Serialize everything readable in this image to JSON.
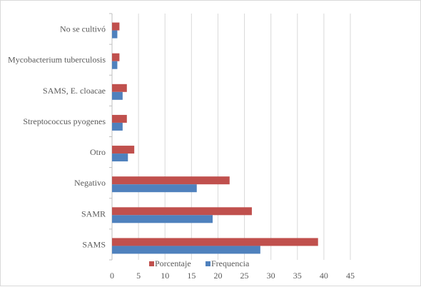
{
  "chart_data": {
    "type": "bar",
    "orientation": "horizontal",
    "categories": [
      "No se cultivó",
      "Mycobacterium tuberculosis",
      "SAMS, E. cloacae",
      "Streptococcus pyogenes",
      "Otro",
      "Negativo",
      "SAMR",
      "SAMS"
    ],
    "series": [
      {
        "name": "Porcentaje",
        "color": "#c0504d",
        "values": [
          1.4,
          1.4,
          2.8,
          2.8,
          4.2,
          22.2,
          26.4,
          38.9
        ]
      },
      {
        "name": "Frequencia",
        "color": "#4f81bd",
        "values": [
          1,
          1,
          2,
          2,
          3,
          16,
          19,
          28
        ]
      }
    ],
    "xlim": [
      0,
      45
    ],
    "x_ticks": [
      0,
      5,
      10,
      15,
      20,
      25,
      30,
      35,
      40,
      45
    ],
    "grid": "vertical",
    "legend": "bottom",
    "title": "",
    "xlabel": "",
    "ylabel": ""
  }
}
